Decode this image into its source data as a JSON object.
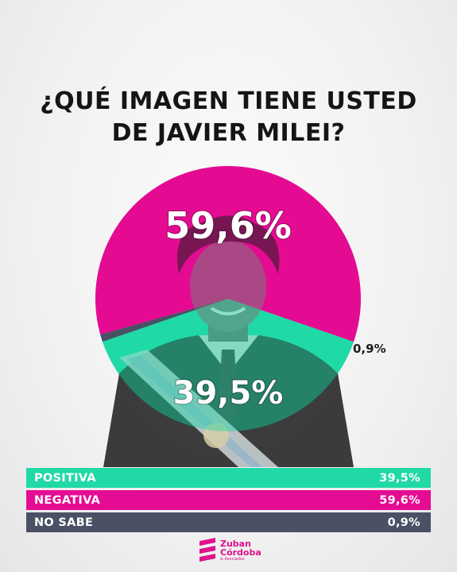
{
  "title": {
    "line1": "¿QUÉ IMAGEN TIENE USTED",
    "line2": "DE JAVIER MILEI?"
  },
  "colors": {
    "positiva": "#20d9a6",
    "negativa": "#e40c93",
    "no_sabe": "#4a5165"
  },
  "chart_data": {
    "type": "pie",
    "title": "¿QUÉ IMAGEN TIENE USTED DE JAVIER MILEI?",
    "categories": [
      "POSITIVA",
      "NEGATIVA",
      "NO SABE"
    ],
    "values": [
      39.5,
      59.6,
      0.9
    ],
    "labels": [
      "39,5%",
      "59,6%",
      "0,9%"
    ]
  },
  "legend": [
    {
      "label": "POSITIVA",
      "value": "39,5%"
    },
    {
      "label": "NEGATIVA",
      "value": "59,6%"
    },
    {
      "label": "NO SABE",
      "value": "0,9%"
    }
  ],
  "logo": {
    "line1": "Zuban",
    "line2": "Córdoba",
    "line3": "& Asociados"
  }
}
